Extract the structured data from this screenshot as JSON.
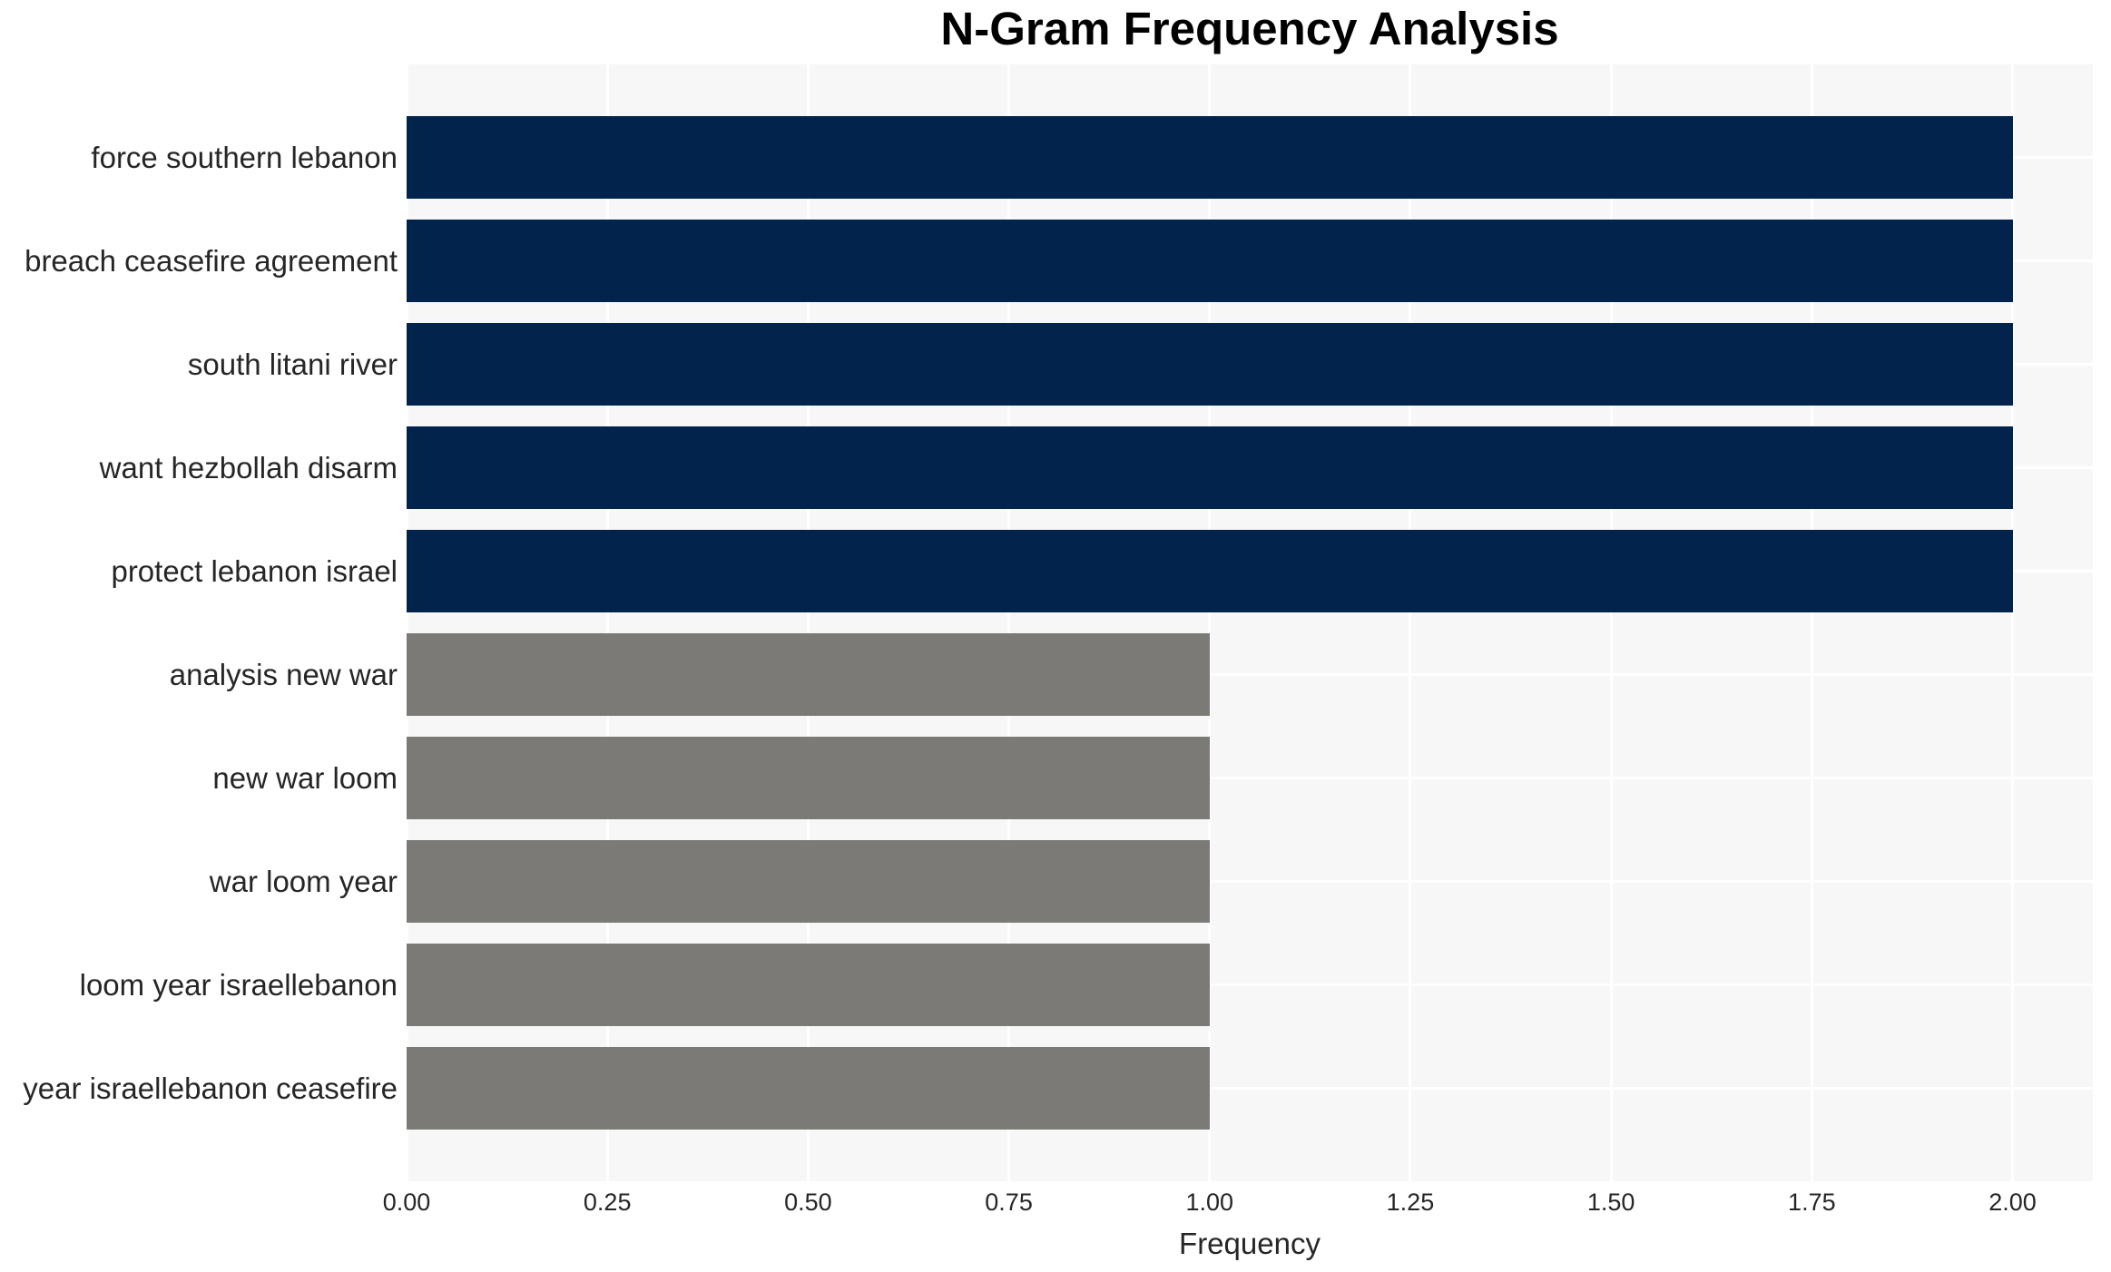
{
  "chart_data": {
    "type": "bar",
    "orientation": "horizontal",
    "title": "N-Gram Frequency Analysis",
    "xlabel": "Frequency",
    "ylabel": "",
    "categories": [
      "force southern lebanon",
      "breach ceasefire agreement",
      "south litani river",
      "want hezbollah disarm",
      "protect lebanon israel",
      "analysis new war",
      "new war loom",
      "war loom year",
      "loom year israellebanon",
      "year israellebanon ceasefire"
    ],
    "values": [
      2.0,
      2.0,
      2.0,
      2.0,
      2.0,
      1.0,
      1.0,
      1.0,
      1.0,
      1.0
    ],
    "bar_colors": [
      "#02234C",
      "#02234C",
      "#02234C",
      "#02234C",
      "#02234C",
      "#7B7A76",
      "#7B7A76",
      "#7B7A76",
      "#7B7A76",
      "#7B7A76"
    ],
    "xlim": [
      0,
      2.1
    ],
    "xtick_values": [
      0,
      0.25,
      0.5,
      0.75,
      1.0,
      1.25,
      1.5,
      1.75,
      2.0
    ],
    "xtick_labels": [
      "0.00",
      "0.25",
      "0.50",
      "0.75",
      "1.00",
      "1.25",
      "1.50",
      "1.75",
      "2.00"
    ],
    "grid": true,
    "legend": false
  },
  "style": {
    "figure_background": "#FFFFFF",
    "plot_background": "#F7F7F7",
    "grid_color": "#FFFFFF",
    "text_color": "#262626",
    "title_color": "#000000",
    "bar_color_high": "#02234C",
    "bar_color_low": "#7B7A76"
  }
}
